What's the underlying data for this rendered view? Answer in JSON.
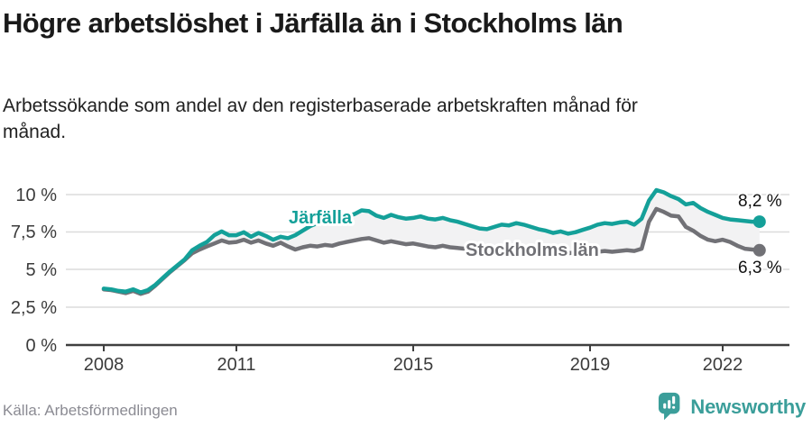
{
  "header": {
    "title": "Högre arbetslöshet i Järfälla än i Stockholms län",
    "subtitle": "Arbetssökande som andel av den registerbaserade arbetskraften månad för månad."
  },
  "footer": {
    "source": "Källa: Arbetsförmedlingen",
    "brand": "Newsworthy",
    "brand_icon": "bar-chart-speech-bubble-icon",
    "brand_color": "#3b9e9a"
  },
  "colors": {
    "jarfalla_line": "#14a099",
    "stockholm_line": "#717176",
    "grid": "#dcdcdc",
    "axis": "#3f3f3f",
    "between_fill": "#f2f2f3",
    "title_text": "#1a1a1a",
    "source_text": "#8b8b93"
  },
  "chart_data": {
    "type": "line",
    "title": "Högre arbetslöshet i Järfälla än i Stockholms län",
    "subtitle": "Arbetssökande som andel av den registerbaserade arbetskraften månad för månad.",
    "source": "Källa: Arbetsförmedlingen",
    "x_start": 2008.0,
    "x_step": 0.16667,
    "x_ticks": [
      2008,
      2011,
      2015,
      2019,
      2022
    ],
    "x_tick_labels": [
      "2008",
      "2011",
      "2015",
      "2019",
      "2022"
    ],
    "y_ticks": [
      0,
      2.5,
      5,
      7.5,
      10
    ],
    "y_tick_labels": [
      "0 %",
      "2,5 %",
      "5 %",
      "7,5 %",
      "10 %"
    ],
    "ylim": [
      0,
      10.5
    ],
    "grid": true,
    "legend_position": "inline-labels",
    "series": [
      {
        "name": "Järfälla",
        "color": "#14a099",
        "end_label": "8,2 %",
        "end_value": 8.2,
        "values": [
          3.75,
          3.7,
          3.6,
          3.55,
          3.7,
          3.5,
          3.65,
          4.0,
          4.45,
          4.9,
          5.3,
          5.7,
          6.3,
          6.6,
          6.85,
          7.3,
          7.55,
          7.3,
          7.3,
          7.5,
          7.2,
          7.45,
          7.25,
          7.0,
          7.2,
          7.1,
          7.3,
          7.6,
          7.9,
          8.1,
          8.25,
          8.4,
          8.5,
          8.55,
          8.7,
          8.95,
          8.9,
          8.6,
          8.45,
          8.65,
          8.5,
          8.4,
          8.45,
          8.55,
          8.4,
          8.35,
          8.45,
          8.3,
          8.2,
          8.05,
          7.9,
          7.75,
          7.7,
          7.85,
          8.0,
          7.95,
          8.1,
          8.0,
          7.85,
          7.7,
          7.6,
          7.45,
          7.55,
          7.4,
          7.5,
          7.65,
          7.8,
          8.0,
          8.1,
          8.05,
          8.15,
          8.2,
          8.0,
          8.4,
          9.6,
          10.3,
          10.15,
          9.9,
          9.7,
          9.35,
          9.45,
          9.1,
          8.85,
          8.65,
          8.45,
          8.35,
          8.3,
          8.25,
          8.2,
          8.2
        ]
      },
      {
        "name": "Stockholms län",
        "color": "#717176",
        "end_label": "6,3 %",
        "end_value": 6.3,
        "values": [
          3.7,
          3.65,
          3.55,
          3.45,
          3.6,
          3.4,
          3.55,
          3.95,
          4.4,
          4.85,
          5.25,
          5.65,
          6.1,
          6.35,
          6.55,
          6.75,
          6.95,
          6.8,
          6.85,
          7.0,
          6.8,
          6.95,
          6.75,
          6.6,
          6.8,
          6.55,
          6.35,
          6.5,
          6.6,
          6.55,
          6.65,
          6.6,
          6.75,
          6.85,
          6.95,
          7.05,
          7.1,
          6.95,
          6.8,
          6.9,
          6.8,
          6.7,
          6.75,
          6.65,
          6.55,
          6.5,
          6.6,
          6.5,
          6.45,
          6.4,
          6.5,
          6.4,
          6.35,
          6.45,
          6.5,
          6.4,
          6.45,
          6.4,
          6.3,
          6.25,
          6.2,
          6.15,
          6.2,
          6.1,
          6.15,
          6.2,
          6.25,
          6.2,
          6.25,
          6.2,
          6.25,
          6.3,
          6.25,
          6.4,
          8.2,
          9.05,
          8.85,
          8.6,
          8.55,
          7.85,
          7.6,
          7.25,
          7.0,
          6.9,
          7.0,
          6.85,
          6.6,
          6.4,
          6.35,
          6.3
        ]
      }
    ]
  }
}
